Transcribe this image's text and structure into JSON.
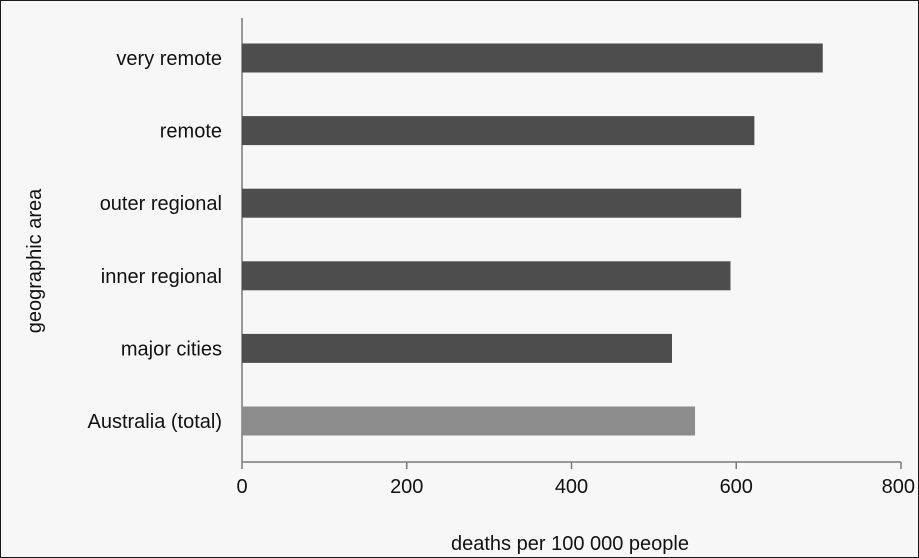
{
  "chart_data": {
    "type": "bar",
    "orientation": "horizontal",
    "categories": [
      "very remote",
      "remote",
      "outer regional",
      "inner regional",
      "major cities",
      "Australia (total)"
    ],
    "values": [
      705,
      622,
      606,
      593,
      522,
      550
    ],
    "bar_colors": [
      "#4d4d4d",
      "#4d4d4d",
      "#4d4d4d",
      "#4d4d4d",
      "#4d4d4d",
      "#8c8c8c"
    ],
    "xlabel": "deaths per 100 000 people",
    "ylabel": "geographic area",
    "xlim": [
      0,
      800
    ],
    "xticks": [
      0,
      200,
      400,
      600,
      800
    ],
    "xtick_labels": [
      "0",
      "200",
      "400",
      "600",
      "800"
    ],
    "grid": false,
    "legend": "none"
  }
}
